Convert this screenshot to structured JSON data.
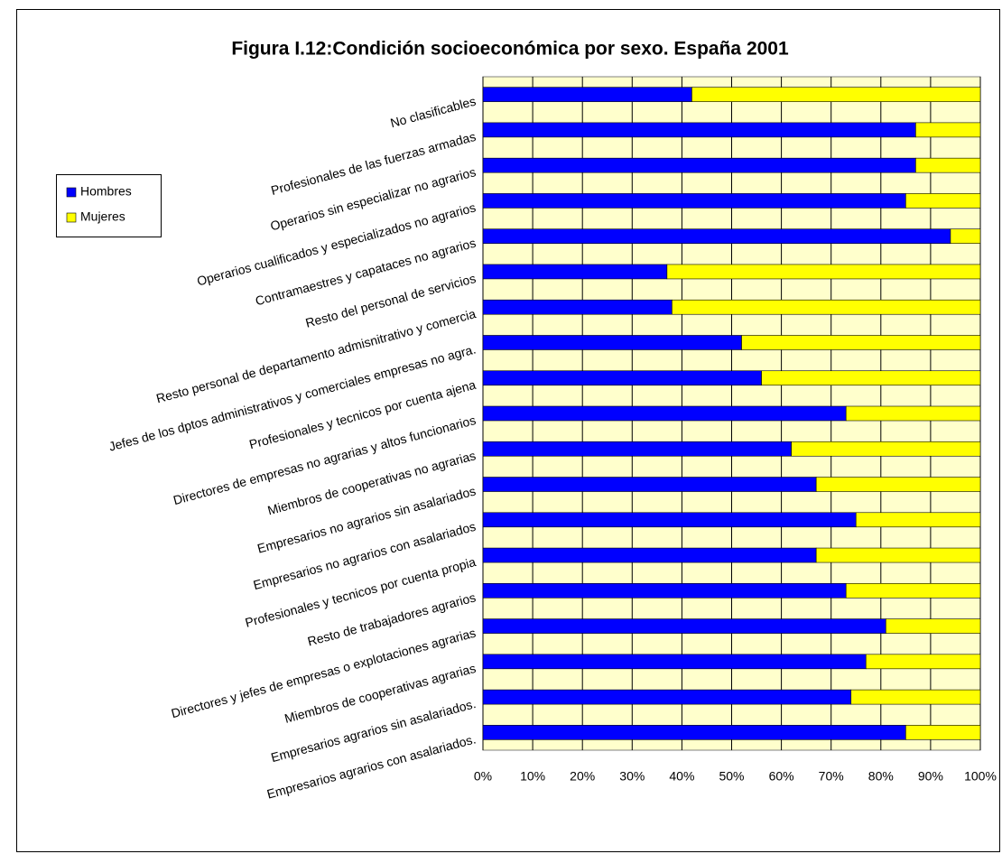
{
  "chart_data": {
    "type": "stacked_barh",
    "title": "Figura I.12:Condición socioeconómica por sexo. España 2001",
    "categories": [
      "No clasificables",
      "Profesionales de las fuerzas armadas",
      "Operarios sin especializar no agrarios",
      "Operarios cualificados y especializados no agrarios",
      "Contramaestres y capataces no agrarios",
      "Resto del personal de servicios",
      "Resto personal de departamento admisnitrativo y comercia",
      "Jefes de los dptos administrativos y comerciales empresas no agra.",
      "Profesionales y tecnicos por cuenta ajena",
      "Directores de empresas no agrarias y altos funcionarios",
      "Miembros de cooperativas no agrarias",
      "Empresarios no agrarios sin asalariados",
      "Empresarios no agrarios con asalariados",
      "Profesionales y tecnicos  por cuenta propia",
      "Resto de trabajadores agrarios",
      "Directores y jefes de empresas o explotaciones agrarias",
      "Miembros de cooperativas agrarias",
      "Empresarios agrarios sin asalariados.",
      "Empresarios agrarios con asalariados."
    ],
    "series": [
      {
        "name": "Hombres",
        "color": "#0000ff",
        "values": [
          42,
          87,
          87,
          85,
          94,
          37,
          38,
          52,
          56,
          73,
          62,
          67,
          75,
          67,
          73,
          81,
          77,
          74,
          85
        ]
      },
      {
        "name": "Mujeres",
        "color": "#ffff00",
        "values": [
          58,
          13,
          13,
          15,
          6,
          63,
          62,
          48,
          44,
          27,
          38,
          33,
          25,
          33,
          27,
          19,
          23,
          26,
          15
        ]
      }
    ],
    "xlim": [
      0,
      100
    ],
    "xticks": [
      {
        "value": 0,
        "label": "0%"
      },
      {
        "value": 10,
        "label": "10%"
      },
      {
        "value": 20,
        "label": "20%"
      },
      {
        "value": 30,
        "label": "30%"
      },
      {
        "value": 40,
        "label": "40%"
      },
      {
        "value": 50,
        "label": "50%"
      },
      {
        "value": 60,
        "label": "60%"
      },
      {
        "value": 70,
        "label": "70%"
      },
      {
        "value": 80,
        "label": "80%"
      },
      {
        "value": 90,
        "label": "90%"
      },
      {
        "value": 100,
        "label": "100%"
      }
    ],
    "grid": true,
    "legend": "left"
  }
}
